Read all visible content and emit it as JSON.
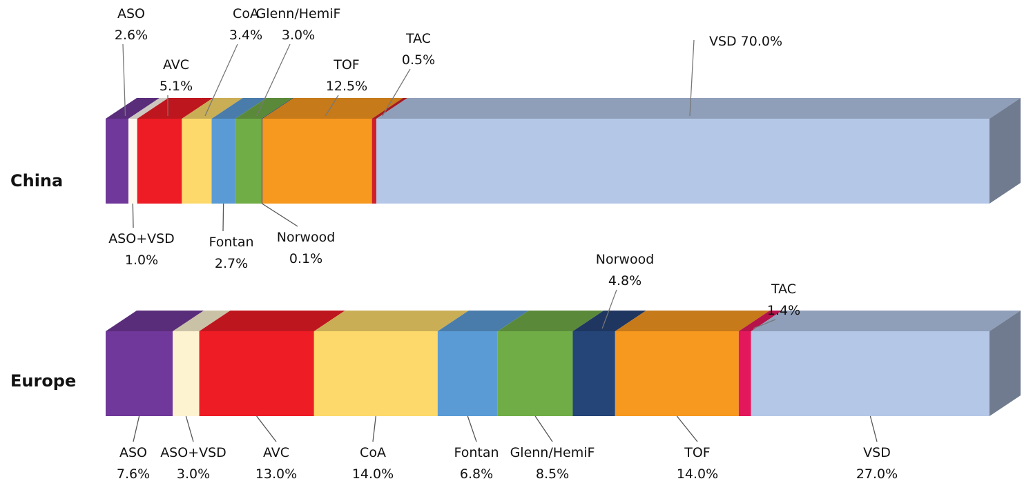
{
  "chart_data": {
    "type": "bar",
    "subtype": "stacked-horizontal-3d-100-percent",
    "categories": [
      "ASO",
      "ASO+VSD",
      "AVC",
      "CoA",
      "Fontan",
      "Glenn/HemiF",
      "Norwood",
      "TOF",
      "TAC",
      "VSD"
    ],
    "colors": [
      "#70389a",
      "#fdf3d0",
      "#ee1c25",
      "#fdd96b",
      "#5b9bd5",
      "#70ad47",
      "#254478",
      "#f7981f",
      "#e3185c",
      "#b4c7e7"
    ],
    "series": [
      {
        "name": "China",
        "values": [
          2.6,
          1.0,
          5.1,
          3.4,
          2.7,
          3.0,
          0.1,
          12.5,
          0.5,
          70.0
        ],
        "labels": [
          "2.6%",
          "1.0%",
          "5.1%",
          "3.4%",
          "2.7%",
          "3.0%",
          "0.1%",
          "12.5%",
          "0.5%",
          "70.0%"
        ],
        "color_overrides": {
          "ASO+VSD": "#fffaf0",
          "TAC": "#d0202a"
        }
      },
      {
        "name": "Europe",
        "values": [
          7.6,
          3.0,
          13.0,
          14.0,
          6.8,
          8.5,
          4.8,
          14.0,
          1.4,
          27.0
        ],
        "labels": [
          "7.6%",
          "3.0%",
          "13.0%",
          "14.0%",
          "6.8%",
          "8.5%",
          "4.8%",
          "14.0%",
          "1.4%",
          "27.0%"
        ],
        "color_overrides": {}
      }
    ],
    "title": "",
    "xlabel": "",
    "ylabel": "",
    "grid": false,
    "legend": "none"
  }
}
